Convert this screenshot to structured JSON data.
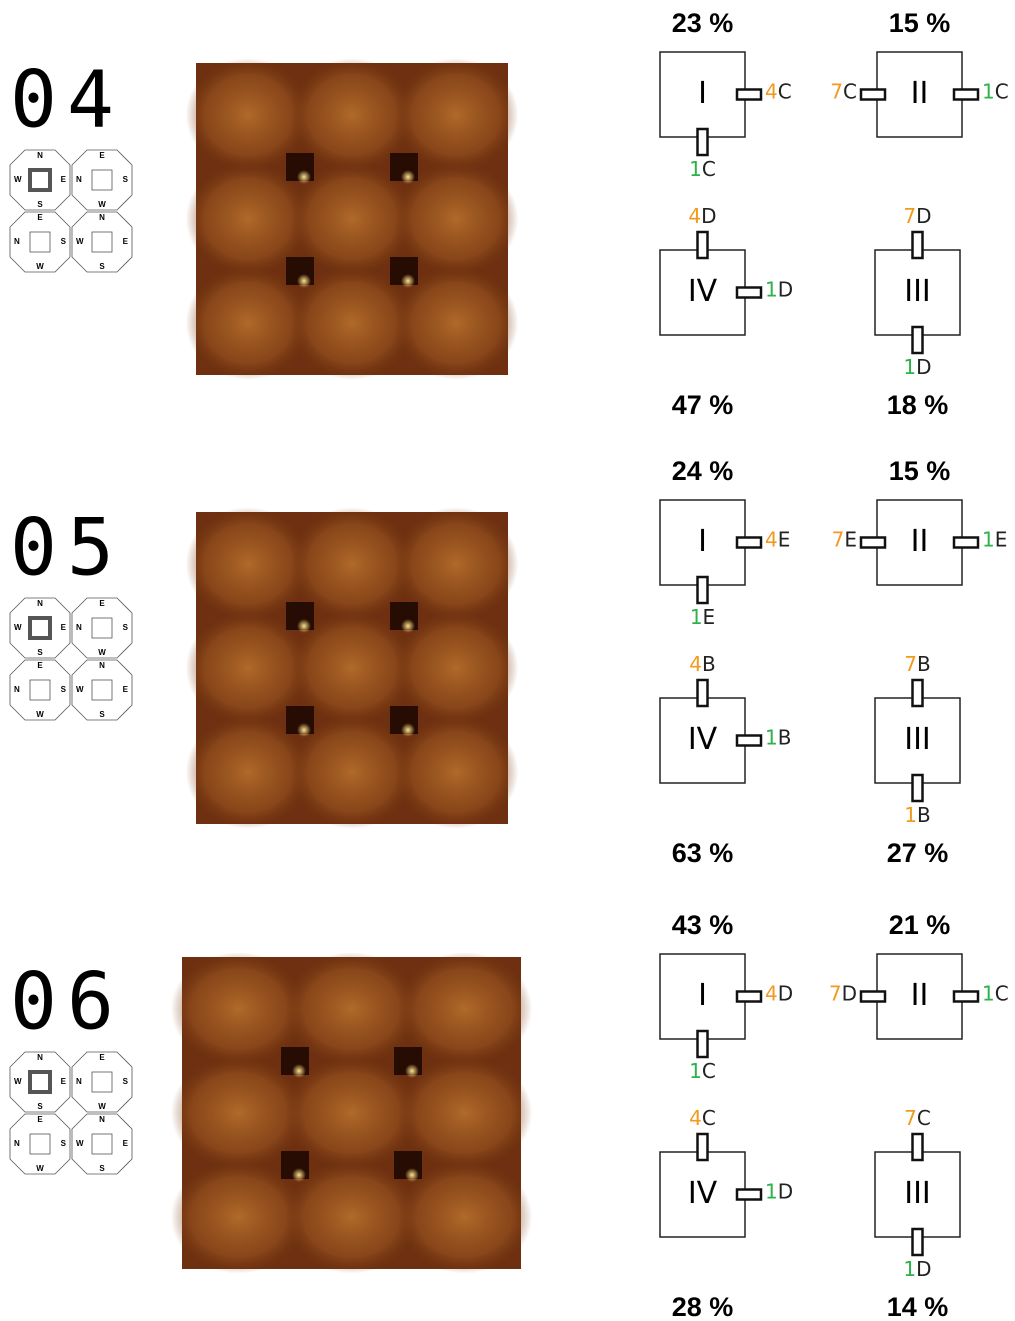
{
  "rows": [
    {
      "label": "04",
      "compass": [
        {
          "top": "N",
          "left": "W",
          "right": "E",
          "bottom": "S"
        },
        {
          "top": "E",
          "left": "N",
          "right": "S",
          "bottom": "W"
        },
        {
          "top": "E",
          "left": "N",
          "right": "S",
          "bottom": "W"
        },
        {
          "top": "N",
          "left": "W",
          "right": "E",
          "bottom": "S"
        }
      ],
      "boxes": [
        {
          "roman": "I",
          "percent": "23 %",
          "ports": [
            {
              "side": "right",
              "number": "4",
              "letter": "C",
              "number_color": "#f39a1e"
            },
            {
              "side": "bottom",
              "number": "1",
              "letter": "C",
              "number_color": "#2bb34a"
            }
          ]
        },
        {
          "roman": "II",
          "percent": "15 %",
          "ports": [
            {
              "side": "left",
              "number": "7",
              "letter": "C",
              "number_color": "#f39a1e"
            },
            {
              "side": "right",
              "number": "1",
              "letter": "C",
              "number_color": "#2bb34a"
            }
          ]
        },
        {
          "roman": "IV",
          "percent": "47 %",
          "ports": [
            {
              "side": "top",
              "number": "4",
              "letter": "D",
              "number_color": "#f39a1e"
            },
            {
              "side": "right",
              "number": "1",
              "letter": "D",
              "number_color": "#2bb34a"
            }
          ]
        },
        {
          "roman": "III",
          "percent": "18 %",
          "ports": [
            {
              "side": "top",
              "number": "7",
              "letter": "D",
              "number_color": "#f39a1e"
            },
            {
              "side": "bottom",
              "number": "1",
              "letter": "D",
              "number_color": "#2bb34a"
            }
          ]
        }
      ]
    },
    {
      "label": "05",
      "compass": [
        {
          "top": "N",
          "left": "W",
          "right": "E",
          "bottom": "S"
        },
        {
          "top": "E",
          "left": "N",
          "right": "S",
          "bottom": "W"
        },
        {
          "top": "E",
          "left": "N",
          "right": "S",
          "bottom": "W"
        },
        {
          "top": "N",
          "left": "W",
          "right": "E",
          "bottom": "S"
        }
      ],
      "boxes": [
        {
          "roman": "I",
          "percent": "24 %",
          "ports": [
            {
              "side": "right",
              "number": "4",
              "letter": "E",
              "number_color": "#f39a1e"
            },
            {
              "side": "bottom",
              "number": "1",
              "letter": "E",
              "number_color": "#2bb34a"
            }
          ]
        },
        {
          "roman": "II",
          "percent": "15 %",
          "ports": [
            {
              "side": "left",
              "number": "7",
              "letter": "E",
              "number_color": "#f39a1e"
            },
            {
              "side": "right",
              "number": "1",
              "letter": "E",
              "number_color": "#2bb34a"
            }
          ]
        },
        {
          "roman": "IV",
          "percent": "63 %",
          "ports": [
            {
              "side": "top",
              "number": "4",
              "letter": "B",
              "number_color": "#f39a1e"
            },
            {
              "side": "right",
              "number": "1",
              "letter": "B",
              "number_color": "#2bb34a"
            }
          ]
        },
        {
          "roman": "III",
          "percent": "27 %",
          "ports": [
            {
              "side": "top",
              "number": "7",
              "letter": "B",
              "number_color": "#f39a1e"
            },
            {
              "side": "bottom",
              "number": "1",
              "letter": "B",
              "number_color": "#f39a1e"
            }
          ]
        }
      ]
    },
    {
      "label": "06",
      "compass": [
        {
          "top": "N",
          "left": "W",
          "right": "E",
          "bottom": "S"
        },
        {
          "top": "E",
          "left": "N",
          "right": "S",
          "bottom": "W"
        },
        {
          "top": "E",
          "left": "N",
          "right": "S",
          "bottom": "W"
        },
        {
          "top": "N",
          "left": "W",
          "right": "E",
          "bottom": "S"
        }
      ],
      "boxes": [
        {
          "roman": "I",
          "percent": "43 %",
          "ports": [
            {
              "side": "right",
              "number": "4",
              "letter": "D",
              "number_color": "#f39a1e"
            },
            {
              "side": "bottom",
              "number": "1",
              "letter": "C",
              "number_color": "#2bb34a"
            }
          ]
        },
        {
          "roman": "II",
          "percent": "21 %",
          "ports": [
            {
              "side": "left",
              "number": "7",
              "letter": "D",
              "number_color": "#f39a1e"
            },
            {
              "side": "right",
              "number": "1",
              "letter": "C",
              "number_color": "#2bb34a"
            }
          ]
        },
        {
          "roman": "IV",
          "percent": "28 %",
          "ports": [
            {
              "side": "top",
              "number": "4",
              "letter": "C",
              "number_color": "#f39a1e"
            },
            {
              "side": "right",
              "number": "1",
              "letter": "D",
              "number_color": "#2bb34a"
            }
          ]
        },
        {
          "roman": "III",
          "percent": "14 %",
          "ports": [
            {
              "side": "top",
              "number": "7",
              "letter": "C",
              "number_color": "#f39a1e"
            },
            {
              "side": "bottom",
              "number": "1",
              "letter": "D",
              "number_color": "#2bb34a"
            }
          ]
        }
      ]
    }
  ]
}
